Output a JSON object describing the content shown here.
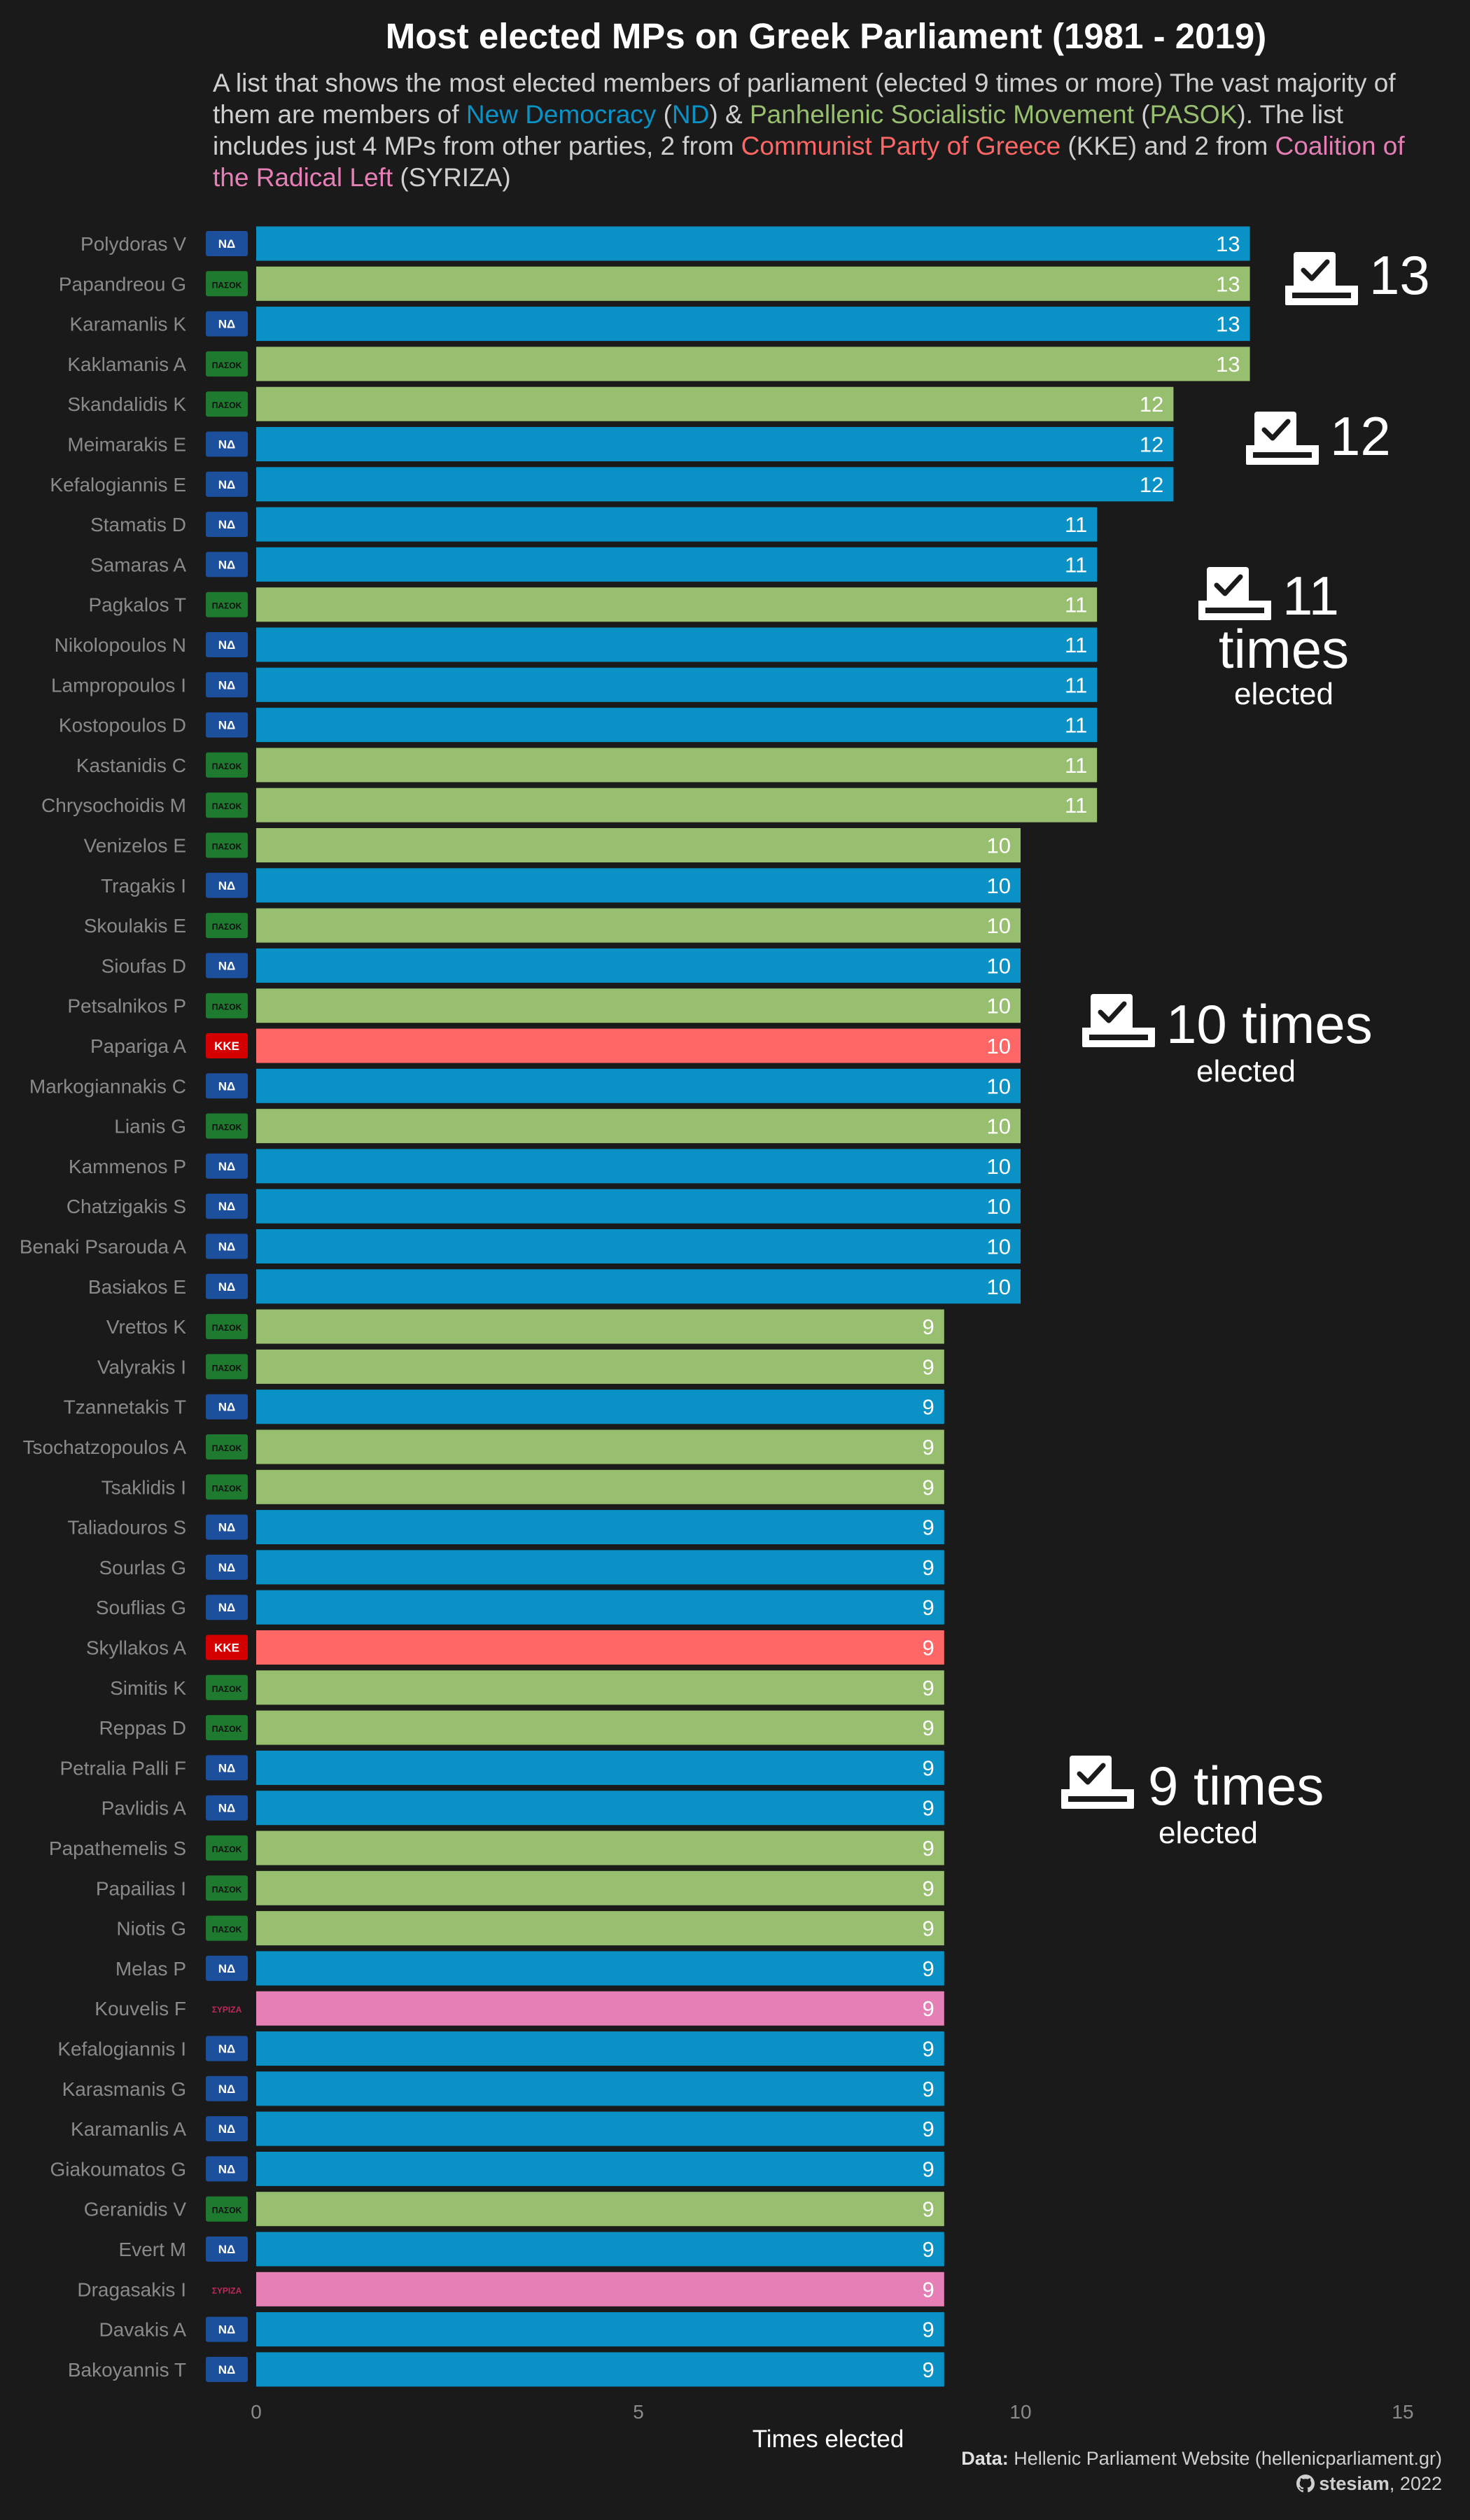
{
  "title": "Most elected MPs on Greek Parliament (1981 - 2019)",
  "subtitle": {
    "part1": "A list that shows the most elected members of parliament (elected 9 times or more) The vast majority of them are members of ",
    "nd_name": "New Democracy",
    "sep1": " (",
    "nd_abbr": "ND",
    "sep2": ") & ",
    "pasok_name": "Panhellenic Socialistic Movement",
    "sep3": " (",
    "pasok_abbr": "PASOK",
    "part2": "). The list includes just 4 MPs from other parties, 2 from ",
    "kke_name": "Communist Party of Greece",
    "part3": " (KKE) and 2 from ",
    "syriza_name": "Coalition of the Radical Left",
    "part4": " (SYRIZA)"
  },
  "footer": {
    "source_label": "Data:",
    "source_text": "Hellenic Parliament Website (hellenicparliament.gr)",
    "credit_handle": "stesiam",
    "credit_year": ", 2022"
  },
  "colors": {
    "background": "#1a1a1a",
    "ND": "#0a92c6",
    "PASOK": "#97bf6f",
    "KKE": "#ff6666",
    "SYRIZA": "#e57fb5",
    "label": "#8a8a8a",
    "annotation": "#ffffff"
  },
  "party_logo_text": {
    "ND": "ΝΔ",
    "PASOK": "ΠΑΣΟΚ",
    "KKE": "ΚΚΕ",
    "SYRIZA": "ΣΥΡΙΖΑ"
  },
  "chart_data": {
    "type": "bar",
    "orientation": "horizontal",
    "title": "Most elected MPs on Greek Parliament (1981 - 2019)",
    "xlabel": "Times elected",
    "ylabel": "",
    "xlim": [
      0,
      15
    ],
    "x_ticks": [
      0,
      5,
      10,
      15
    ],
    "grid": false,
    "legend": "none",
    "categories": [
      "Polydoras V",
      "Papandreou G",
      "Karamanlis K",
      "Kaklamanis A",
      "Skandalidis K",
      "Meimarakis E",
      "Kefalogiannis E",
      "Stamatis D",
      "Samaras A",
      "Pagkalos T",
      "Nikolopoulos N",
      "Lampropoulos I",
      "Kostopoulos D",
      "Kastanidis C",
      "Chrysochoidis M",
      "Venizelos E",
      "Tragakis I",
      "Skoulakis E",
      "Sioufas D",
      "Petsalnikos P",
      "Papariga A",
      "Markogiannakis C",
      "Lianis G",
      "Kammenos P",
      "Chatzigakis S",
      "Benaki Psarouda A",
      "Basiakos E",
      "Vrettos K",
      "Valyrakis I",
      "Tzannetakis T",
      "Tsochatzopoulos A",
      "Tsaklidis I",
      "Taliadouros S",
      "Sourlas G",
      "Souflias G",
      "Skyllakos A",
      "Simitis K",
      "Reppas D",
      "Petralia Palli F",
      "Pavlidis A",
      "Papathemelis S",
      "Papailias I",
      "Niotis G",
      "Melas P",
      "Kouvelis F",
      "Kefalogiannis I",
      "Karasmanis G",
      "Karamanlis A",
      "Giakoumatos G",
      "Geranidis V",
      "Evert M",
      "Dragasakis I",
      "Davakis A",
      "Bakoyannis T"
    ],
    "values": [
      13,
      13,
      13,
      13,
      12,
      12,
      12,
      11,
      11,
      11,
      11,
      11,
      11,
      11,
      11,
      10,
      10,
      10,
      10,
      10,
      10,
      10,
      10,
      10,
      10,
      10,
      10,
      9,
      9,
      9,
      9,
      9,
      9,
      9,
      9,
      9,
      9,
      9,
      9,
      9,
      9,
      9,
      9,
      9,
      9,
      9,
      9,
      9,
      9,
      9,
      9,
      9,
      9,
      9
    ],
    "party": [
      "ND",
      "PASOK",
      "ND",
      "PASOK",
      "PASOK",
      "ND",
      "ND",
      "ND",
      "ND",
      "PASOK",
      "ND",
      "ND",
      "ND",
      "PASOK",
      "PASOK",
      "PASOK",
      "ND",
      "PASOK",
      "ND",
      "PASOK",
      "KKE",
      "ND",
      "PASOK",
      "ND",
      "ND",
      "ND",
      "ND",
      "PASOK",
      "PASOK",
      "ND",
      "PASOK",
      "PASOK",
      "ND",
      "ND",
      "ND",
      "KKE",
      "PASOK",
      "PASOK",
      "ND",
      "ND",
      "PASOK",
      "PASOK",
      "PASOK",
      "ND",
      "SYRIZA",
      "ND",
      "ND",
      "ND",
      "ND",
      "PASOK",
      "ND",
      "SYRIZA",
      "ND",
      "ND"
    ],
    "annotations": [
      {
        "value": 13,
        "main": "13",
        "sub": ""
      },
      {
        "value": 12,
        "main": "12",
        "sub": ""
      },
      {
        "value": 11,
        "main": "11",
        "line2": "times",
        "sub": "elected"
      },
      {
        "value": 10,
        "main": "10 times",
        "sub": "elected"
      },
      {
        "value": 9,
        "main": "9 times",
        "sub": "elected"
      }
    ]
  }
}
